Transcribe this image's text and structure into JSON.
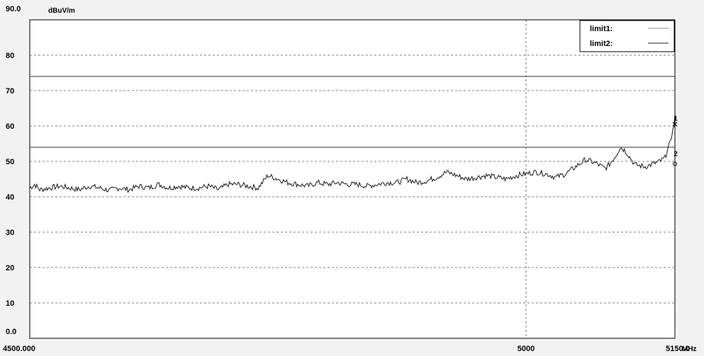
{
  "chart_data": {
    "type": "line",
    "y_unit": "dBuV/m",
    "x_unit": "MHz",
    "xlim": [
      4500,
      5150
    ],
    "ylim": [
      0,
      90
    ],
    "y_ticks": [
      {
        "value": 0,
        "label": "0.0"
      },
      {
        "value": 10,
        "label": "10"
      },
      {
        "value": 20,
        "label": "20"
      },
      {
        "value": 30,
        "label": "30"
      },
      {
        "value": 40,
        "label": "40"
      },
      {
        "value": 50,
        "label": "50"
      },
      {
        "value": 60,
        "label": "60"
      },
      {
        "value": 70,
        "label": "70"
      },
      {
        "value": 80,
        "label": "80"
      },
      {
        "value": 90,
        "label": "90.0"
      }
    ],
    "x_ticks": [
      {
        "value": 4500,
        "label": "4500.000"
      },
      {
        "value": 5000,
        "label": "5000"
      },
      {
        "value": 5150,
        "label": "5150.0"
      }
    ],
    "grid": true,
    "legend_position": "top-right",
    "legend": [
      {
        "label": "limit1:"
      },
      {
        "label": "limit2:"
      }
    ],
    "limits": [
      {
        "name": "limit1",
        "value": 74
      },
      {
        "name": "limit2",
        "value": 54
      }
    ],
    "series": [
      {
        "x": [
          4500,
          4505,
          4510,
          4520,
          4530,
          4540,
          4550,
          4560,
          4570,
          4580,
          4590,
          4600,
          4610,
          4620,
          4630,
          4640,
          4650,
          4660,
          4670,
          4680,
          4690,
          4700,
          4710,
          4720,
          4730,
          4740,
          4750,
          4760,
          4770,
          4780,
          4790,
          4800,
          4810,
          4820,
          4830,
          4840,
          4850,
          4860,
          4870,
          4880,
          4890,
          4900,
          4910,
          4920,
          4930,
          4940,
          4950,
          4960,
          4970,
          4980,
          4990,
          5000,
          5010,
          5020,
          5030,
          5040,
          5050,
          5060,
          5070,
          5080,
          5085,
          5090,
          5095,
          5100,
          5110,
          5120,
          5130,
          5135,
          5140,
          5142,
          5145,
          5147,
          5149,
          5150
        ],
        "y": [
          42.5,
          43.5,
          42.0,
          42.5,
          43.0,
          42.5,
          42.0,
          43.0,
          42.5,
          41.8,
          42.5,
          42.0,
          43.0,
          42.5,
          43.5,
          42.5,
          43.0,
          42.5,
          42.5,
          43.0,
          42.0,
          43.5,
          43.5,
          43.0,
          42.5,
          46.0,
          45.0,
          44.0,
          43.5,
          43.0,
          44.0,
          43.5,
          44.0,
          43.5,
          43.5,
          43.0,
          43.5,
          44.0,
          44.0,
          45.0,
          44.0,
          44.5,
          45.5,
          47.0,
          46.0,
          45.0,
          45.5,
          46.0,
          45.5,
          45.0,
          46.0,
          46.5,
          47.0,
          46.5,
          45.5,
          46.5,
          48.5,
          50.5,
          49.5,
          48.0,
          49.5,
          51.5,
          54.0,
          53.0,
          49.0,
          48.5,
          49.5,
          50.0,
          51.0,
          53.0,
          55.0,
          58.0,
          60.0,
          63.0
        ]
      }
    ],
    "markers": [
      {
        "label": "1",
        "x": 5150,
        "y": 60.5,
        "symbol": "x"
      },
      {
        "label": "2",
        "x": 5150,
        "y": 50.5,
        "symbol": "o"
      }
    ]
  }
}
